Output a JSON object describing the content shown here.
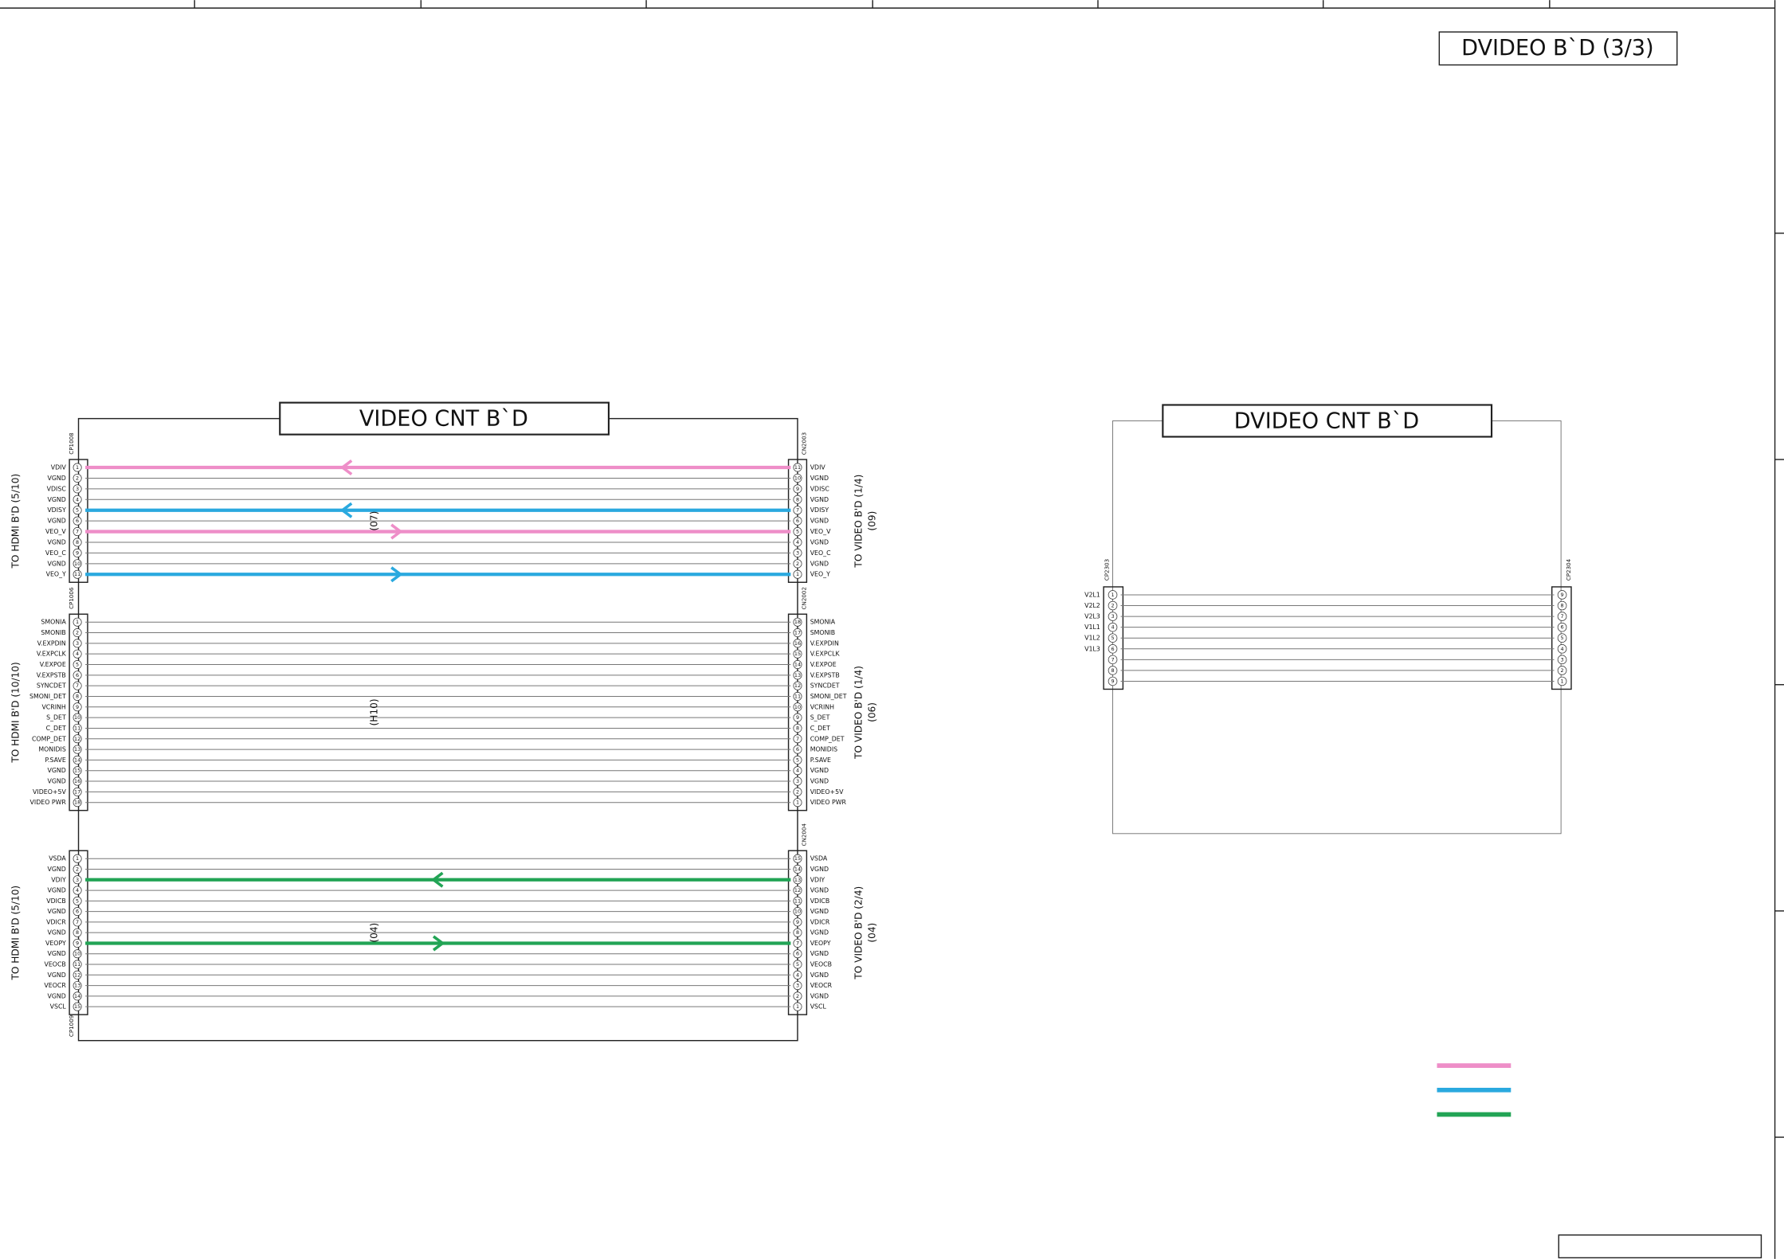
{
  "title": "DVIDEO B`D (3/3)",
  "boards": [
    {
      "title": "VIDEO CNT B`D",
      "groups": [
        {
          "left_connector": "CP1008",
          "right_connector": "CN2003",
          "left_dest": "TO HDMI B'D (5/10)",
          "right_dest": "TO VIDEO B'D (1/4)",
          "right_ref": "(09)",
          "cable": "(07)",
          "pins": [
            {
              "l": "VDIV",
              "r": "VDIV",
              "ln": 1,
              "rn": 11,
              "color": "#ee8ec8",
              "arrow": "left"
            },
            {
              "l": "VGND",
              "r": "VGND",
              "ln": 2,
              "rn": 10
            },
            {
              "l": "VDISC",
              "r": "VDISC",
              "ln": 3,
              "rn": 9
            },
            {
              "l": "VGND",
              "r": "VGND",
              "ln": 4,
              "rn": 8
            },
            {
              "l": "VDISY",
              "r": "VDISY",
              "ln": 5,
              "rn": 7,
              "color": "#2aa9df",
              "arrow": "left"
            },
            {
              "l": "VGND",
              "r": "VGND",
              "ln": 6,
              "rn": 6
            },
            {
              "l": "VEO_V",
              "r": "VEO_V",
              "ln": 7,
              "rn": 5,
              "color": "#ee8ec8",
              "arrow": "right"
            },
            {
              "l": "VGND",
              "r": "VGND",
              "ln": 8,
              "rn": 4
            },
            {
              "l": "VEO_C",
              "r": "VEO_C",
              "ln": 9,
              "rn": 3
            },
            {
              "l": "VGND",
              "r": "VGND",
              "ln": 10,
              "rn": 2
            },
            {
              "l": "VEO_Y",
              "r": "VEO_Y",
              "ln": 11,
              "rn": 1,
              "color": "#2aa9df",
              "arrow": "right"
            }
          ]
        },
        {
          "left_connector": "CP1006",
          "right_connector": "CN2002",
          "left_dest": "TO HDMI B'D (10/10)",
          "right_dest": "TO VIDEO B'D (1/4)",
          "right_ref": "(06)",
          "cable": "(H10)",
          "pins": [
            {
              "l": "SMONIA",
              "r": "SMONIA",
              "ln": 1,
              "rn": 18
            },
            {
              "l": "SMONIB",
              "r": "SMONIB",
              "ln": 2,
              "rn": 17
            },
            {
              "l": "V.EXPDIN",
              "r": "V.EXPDIN",
              "ln": 3,
              "rn": 16
            },
            {
              "l": "V.EXPCLK",
              "r": "V.EXPCLK",
              "ln": 4,
              "rn": 15
            },
            {
              "l": "V.EXPOE",
              "r": "V.EXPOE",
              "ln": 5,
              "rn": 14
            },
            {
              "l": "V.EXPSTB",
              "r": "V.EXPSTB",
              "ln": 6,
              "rn": 13
            },
            {
              "l": "SYNCDET",
              "r": "SYNCDET",
              "ln": 7,
              "rn": 12
            },
            {
              "l": "SMONI_DET",
              "r": "SMONI_DET",
              "ln": 8,
              "rn": 11
            },
            {
              "l": "VCRINH",
              "r": "VCRINH",
              "ln": 9,
              "rn": 10
            },
            {
              "l": "S_DET",
              "r": "S_DET",
              "ln": 10,
              "rn": 9
            },
            {
              "l": "C_DET",
              "r": "C_DET",
              "ln": 11,
              "rn": 8
            },
            {
              "l": "COMP_DET",
              "r": "COMP_DET",
              "ln": 12,
              "rn": 7
            },
            {
              "l": "MONIDIS",
              "r": "MONIDIS",
              "ln": 13,
              "rn": 6
            },
            {
              "l": "P.SAVE",
              "r": "P.SAVE",
              "ln": 14,
              "rn": 5
            },
            {
              "l": "VGND",
              "r": "VGND",
              "ln": 15,
              "rn": 4
            },
            {
              "l": "VGND",
              "r": "VGND",
              "ln": 16,
              "rn": 3
            },
            {
              "l": "VIDEO+5V",
              "r": "VIDEO+5V",
              "ln": 17,
              "rn": 2
            },
            {
              "l": "VIDEO PWR",
              "r": "VIDEO PWR",
              "ln": 18,
              "rn": 1
            }
          ]
        },
        {
          "left_connector": "CP1009",
          "right_connector": "CN2004",
          "left_dest": "TO HDMI B'D (5/10)",
          "right_dest": "TO VIDEO B'D (2/4)",
          "right_ref": "(04)",
          "cable": "(04)",
          "pins": [
            {
              "l": "VSDA",
              "r": "VSDA",
              "ln": 1,
              "rn": 15
            },
            {
              "l": "VGND",
              "r": "VGND",
              "ln": 2,
              "rn": 14
            },
            {
              "l": "VDIY",
              "r": "VDIY",
              "ln": 3,
              "rn": 13,
              "color": "#22a455",
              "arrow": "left"
            },
            {
              "l": "VGND",
              "r": "VGND",
              "ln": 4,
              "rn": 12
            },
            {
              "l": "VDICB",
              "r": "VDICB",
              "ln": 5,
              "rn": 11
            },
            {
              "l": "VGND",
              "r": "VGND",
              "ln": 6,
              "rn": 10
            },
            {
              "l": "VDICR",
              "r": "VDICR",
              "ln": 7,
              "rn": 9
            },
            {
              "l": "VGND",
              "r": "VGND",
              "ln": 8,
              "rn": 8
            },
            {
              "l": "VEOPY",
              "r": "VEOPY",
              "ln": 9,
              "rn": 7,
              "color": "#22a455",
              "arrow": "right"
            },
            {
              "l": "VGND",
              "r": "VGND",
              "ln": 10,
              "rn": 6
            },
            {
              "l": "VEOCB",
              "r": "VEOCB",
              "ln": 11,
              "rn": 5
            },
            {
              "l": "VGND",
              "r": "VGND",
              "ln": 12,
              "rn": 4
            },
            {
              "l": "VEOCR",
              "r": "VEOCR",
              "ln": 13,
              "rn": 3
            },
            {
              "l": "VGND",
              "r": "VGND",
              "ln": 14,
              "rn": 2
            },
            {
              "l": "VSCL",
              "r": "VSCL",
              "ln": 15,
              "rn": 1
            }
          ]
        }
      ]
    },
    {
      "title": "DVIDEO CNT B`D",
      "groups": [
        {
          "left_connector": "CP2303",
          "right_connector": "CP2304",
          "pins": [
            {
              "l": "V2L1",
              "ln": 1,
              "rn": 9
            },
            {
              "l": "V2L2",
              "ln": 2,
              "rn": 8
            },
            {
              "l": "V2L3",
              "ln": 3,
              "rn": 7
            },
            {
              "l": "V1L1",
              "ln": 4,
              "rn": 6
            },
            {
              "l": "V1L2",
              "ln": 5,
              "rn": 5
            },
            {
              "l": "V1L3",
              "ln": 6,
              "rn": 4
            },
            {
              "ln": 7,
              "rn": 3
            },
            {
              "ln": 8,
              "rn": 2
            },
            {
              "ln": 9,
              "rn": 1
            }
          ]
        }
      ]
    }
  ],
  "legend": [
    {
      "color": "#ee8ec8"
    },
    {
      "color": "#2aa9df"
    },
    {
      "color": "#22a455"
    }
  ]
}
